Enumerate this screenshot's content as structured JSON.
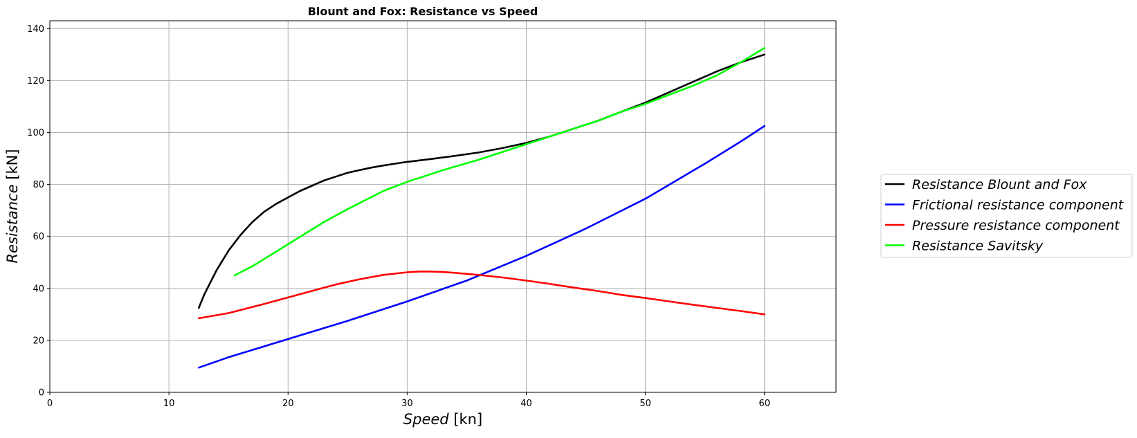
{
  "chart_data": {
    "type": "line",
    "title": "Blount and Fox: Resistance vs Speed",
    "xlabel_main": "Speed",
    "xlabel_unit": " [kn]",
    "ylabel_main": "Resistance",
    "ylabel_unit": " [kN]",
    "xlim": [
      0,
      66
    ],
    "ylim": [
      0,
      143
    ],
    "xticks": [
      0,
      10,
      20,
      30,
      40,
      50,
      60
    ],
    "yticks": [
      0,
      20,
      40,
      60,
      80,
      100,
      120,
      140
    ],
    "grid": true,
    "legend_position": "right",
    "series": [
      {
        "name": "Resistance Blount and Fox",
        "color": "#000000",
        "x": [
          12.5,
          13,
          14,
          15,
          16,
          17,
          18,
          19,
          20,
          21,
          22,
          23,
          24,
          25,
          26,
          27,
          28,
          29,
          30,
          32,
          34,
          36,
          38,
          40,
          42,
          44,
          46,
          48,
          50,
          52,
          54,
          56,
          58,
          60
        ],
        "y": [
          32.5,
          38,
          47,
          54.5,
          60.5,
          65.5,
          69.5,
          72.5,
          75,
          77.5,
          79.5,
          81.5,
          83,
          84.5,
          85.5,
          86.5,
          87.3,
          88,
          88.7,
          89.8,
          91,
          92.3,
          94,
          96,
          98.5,
          101.5,
          104.5,
          108,
          111.5,
          115.5,
          119.5,
          123.5,
          127,
          130
        ]
      },
      {
        "name": "Frictional resistance component",
        "color": "#0000ff",
        "x": [
          12.5,
          15,
          20,
          25,
          30,
          35,
          40,
          45,
          50,
          55,
          58,
          60
        ],
        "y": [
          9.5,
          13.5,
          20.5,
          27.5,
          35,
          43,
          52.5,
          63,
          74.5,
          88,
          96.5,
          102.5
        ]
      },
      {
        "name": "Pressure resistance component",
        "color": "#ff0000",
        "x": [
          12.5,
          15,
          18,
          20,
          22,
          24,
          26,
          28,
          30,
          31,
          32,
          33,
          34,
          36,
          38,
          40,
          42,
          44,
          46,
          48,
          50,
          52,
          54,
          56,
          58,
          60
        ],
        "y": [
          28.5,
          30.5,
          34,
          36.5,
          39,
          41.5,
          43.5,
          45.2,
          46.2,
          46.5,
          46.5,
          46.3,
          46,
          45.2,
          44.2,
          43,
          41.7,
          40.3,
          39,
          37.5,
          36.3,
          35,
          33.7,
          32.5,
          31.3,
          30
        ]
      },
      {
        "name": "Resistance Savitsky",
        "color": "#00ff00",
        "x": [
          15.5,
          17,
          20,
          23,
          25,
          28,
          30,
          33,
          36,
          38,
          40,
          42,
          44,
          46,
          48,
          50,
          52,
          54,
          56,
          58,
          60
        ],
        "y": [
          45,
          48.5,
          57,
          65.5,
          70.5,
          77.5,
          81,
          85.5,
          89.5,
          92.5,
          95.5,
          98.5,
          101.5,
          104.5,
          108,
          111,
          114.5,
          118,
          122,
          127,
          132.5
        ]
      }
    ]
  }
}
